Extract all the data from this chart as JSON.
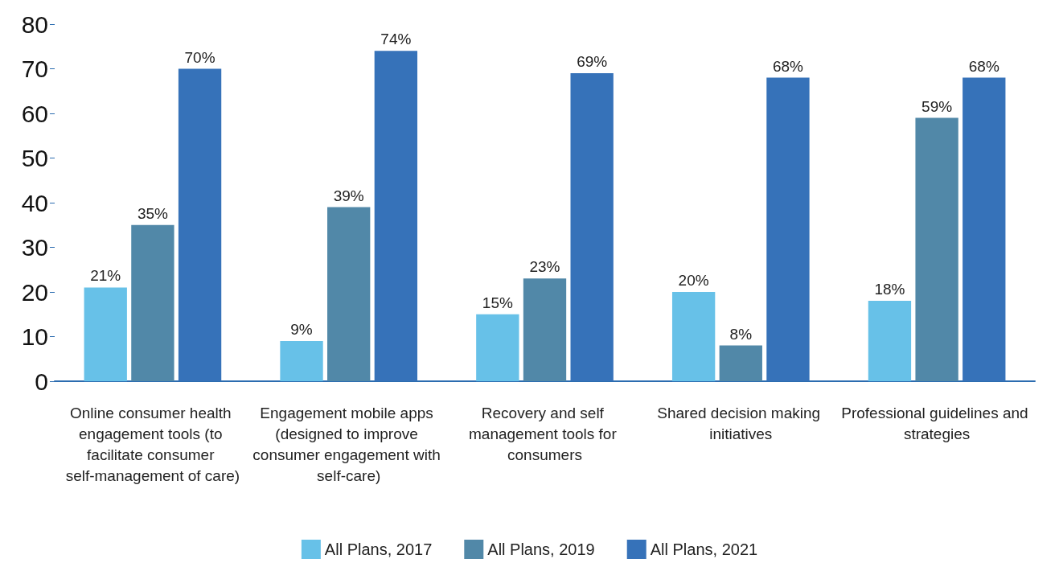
{
  "chart_data": {
    "type": "bar",
    "categories": [
      "Online consumer health engagement tools (to facilitate consumer self-management of care)",
      "Engagement mobile apps (designed to improve consumer engagement with self-care)",
      "Recovery and self management tools for consumers",
      "Shared decision making initiatives",
      "Professional guidelines and strategies"
    ],
    "series": [
      {
        "name": "All Plans, 2017",
        "color": "#67c1e8",
        "values": [
          21,
          9,
          15,
          20,
          18
        ],
        "value_labels": [
          "21%",
          "9%",
          "15%",
          "20%",
          "18%"
        ]
      },
      {
        "name": "All Plans, 2019",
        "color": "#5188a8",
        "values": [
          35,
          39,
          23,
          8,
          59
        ],
        "value_labels": [
          "35%",
          "39%",
          "23%",
          "8%",
          "59%"
        ]
      },
      {
        "name": "All Plans, 2021",
        "color": "#3672b9",
        "values": [
          70,
          74,
          69,
          68,
          68
        ],
        "value_labels": [
          "70%",
          "74%",
          "69%",
          "68%",
          "68%"
        ]
      }
    ],
    "ylim": [
      0,
      80
    ],
    "yticks": [
      0,
      10,
      20,
      30,
      40,
      50,
      60,
      70,
      80
    ],
    "grid": false,
    "legend": "bottom"
  }
}
